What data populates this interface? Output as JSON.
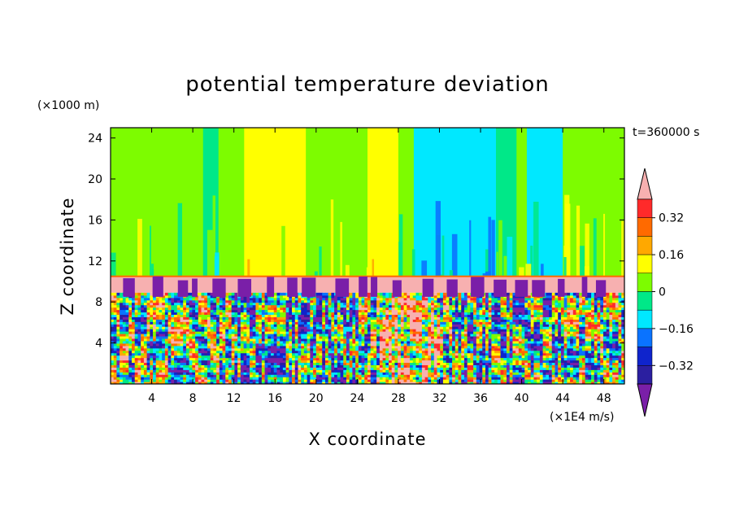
{
  "chart_data": {
    "type": "heatmap",
    "title": "potential temperature deviation",
    "xlabel": "X coordinate",
    "ylabel": "Z coordinate",
    "x_unit": "(×1E4 m/s)",
    "y_unit": "(×1000 m)",
    "time_label": "t=360000 s",
    "xlim": [
      0,
      50
    ],
    "ylim": [
      0,
      25
    ],
    "x_ticks": [
      4,
      8,
      12,
      16,
      20,
      24,
      28,
      32,
      36,
      40,
      44,
      48
    ],
    "y_ticks": [
      4,
      8,
      12,
      16,
      20,
      24
    ],
    "grid": false,
    "colorbar": {
      "placement": "right",
      "levels": [
        -0.4,
        -0.32,
        -0.24,
        -0.16,
        -0.08,
        0,
        0.08,
        0.16,
        0.24,
        0.32,
        0.4
      ],
      "colors": [
        "#7a1fa8",
        "#2b1fa0",
        "#0f24cc",
        "#0a73ff",
        "#00e8ff",
        "#00e888",
        "#7dfc00",
        "#ffff00",
        "#ffa800",
        "#ff6a00",
        "#ff2a2a",
        "#f7b0b0"
      ],
      "tick_labels": [
        "0.32",
        "0.16",
        "0",
        "−0.16",
        "−0.32"
      ],
      "tick_values": [
        0.32,
        0.16,
        0,
        -0.16,
        -0.32
      ]
    },
    "upper_region": {
      "z_range": [
        10.5,
        25
      ],
      "bands": [
        {
          "x": [
            0,
            9
          ],
          "value": 0.03
        },
        {
          "x": [
            9,
            10.5
          ],
          "value": -0.04
        },
        {
          "x": [
            10.5,
            13
          ],
          "value": 0.03
        },
        {
          "x": [
            13,
            19
          ],
          "value": 0.12
        },
        {
          "x": [
            19,
            25
          ],
          "value": 0.03
        },
        {
          "x": [
            25,
            28
          ],
          "value": 0.12
        },
        {
          "x": [
            28,
            29.5
          ],
          "value": 0.03
        },
        {
          "x": [
            29.5,
            37.5
          ],
          "value": -0.12
        },
        {
          "x": [
            37.5,
            39.5
          ],
          "value": -0.04
        },
        {
          "x": [
            39.5,
            40.5
          ],
          "value": 0.03
        },
        {
          "x": [
            40.5,
            44
          ],
          "value": -0.12
        },
        {
          "x": [
            44,
            50
          ],
          "value": 0.03
        }
      ]
    },
    "inversion_layer": {
      "z_range": [
        8.9,
        10.5
      ],
      "value": 0.42
    },
    "lower_region": {
      "z_range": [
        0,
        8.9
      ],
      "description": "turbulent mixed values from -0.40 to 0.40"
    }
  }
}
